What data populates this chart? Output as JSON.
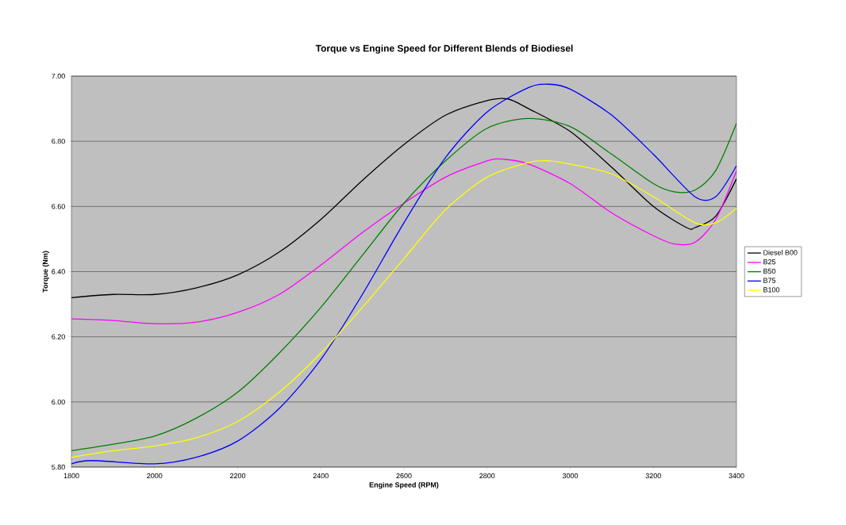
{
  "chart_data": {
    "type": "line",
    "title": "Torque vs Engine Speed for Different Blends of Biodiesel",
    "xlabel": "Engine Speed (RPM)",
    "ylabel": "Torque (Nm)",
    "xlim": [
      1800,
      3400
    ],
    "xticks": [
      1800,
      2000,
      2200,
      2400,
      2600,
      2800,
      3000,
      3200,
      3400
    ],
    "ylim": [
      5.8,
      7.0
    ],
    "yticks": [
      {
        "value": 5.8,
        "label": "5.80"
      },
      {
        "value": 6.0,
        "label": "6.00"
      },
      {
        "value": 6.2,
        "label": "6.20"
      },
      {
        "value": 6.4,
        "label": "6.40"
      },
      {
        "value": 6.6,
        "label": "6.60"
      },
      {
        "value": 6.8,
        "label": "6.80"
      },
      {
        "value": 7.0,
        "label": "7.00"
      }
    ],
    "grid": "y",
    "legend": "right",
    "marker": "none",
    "line_style": "solid",
    "series": [
      {
        "name": "Diesel B00",
        "color": "#000000",
        "x": [
          1800,
          1900,
          2000,
          2100,
          2200,
          2300,
          2400,
          2500,
          2600,
          2700,
          2800,
          2850,
          2900,
          3000,
          3100,
          3200,
          3280,
          3300,
          3350,
          3400
        ],
        "values": [
          6.32,
          6.33,
          6.33,
          6.35,
          6.39,
          6.46,
          6.56,
          6.68,
          6.79,
          6.88,
          6.925,
          6.93,
          6.9,
          6.83,
          6.72,
          6.6,
          6.535,
          6.535,
          6.57,
          6.685
        ]
      },
      {
        "name": "B25",
        "color": "#ff00ff",
        "x": [
          1800,
          1900,
          2000,
          2100,
          2200,
          2300,
          2400,
          2500,
          2600,
          2700,
          2800,
          2840,
          2900,
          3000,
          3100,
          3200,
          3250,
          3300,
          3350,
          3400
        ],
        "values": [
          6.255,
          6.25,
          6.24,
          6.245,
          6.275,
          6.33,
          6.42,
          6.52,
          6.61,
          6.69,
          6.74,
          6.745,
          6.73,
          6.67,
          6.58,
          6.51,
          6.485,
          6.49,
          6.56,
          6.71
        ]
      },
      {
        "name": "B50",
        "color": "#008000",
        "x": [
          1800,
          1900,
          2000,
          2100,
          2200,
          2300,
          2400,
          2500,
          2600,
          2700,
          2800,
          2900,
          3000,
          3100,
          3200,
          3250,
          3300,
          3350,
          3400
        ],
        "values": [
          5.85,
          5.87,
          5.895,
          5.95,
          6.03,
          6.15,
          6.29,
          6.45,
          6.61,
          6.74,
          6.84,
          6.87,
          6.845,
          6.76,
          6.67,
          6.645,
          6.65,
          6.71,
          6.855
        ]
      },
      {
        "name": "B75",
        "color": "#0000ff",
        "x": [
          1800,
          1850,
          2000,
          2100,
          2200,
          2300,
          2400,
          2500,
          2600,
          2700,
          2800,
          2900,
          2950,
          3000,
          3100,
          3200,
          3300,
          3350,
          3400
        ],
        "values": [
          5.81,
          5.82,
          5.81,
          5.83,
          5.88,
          5.98,
          6.13,
          6.33,
          6.55,
          6.75,
          6.89,
          6.965,
          6.975,
          6.96,
          6.88,
          6.76,
          6.63,
          6.63,
          6.725
        ]
      },
      {
        "name": "B100",
        "color": "#ffff00",
        "x": [
          1800,
          1900,
          2000,
          2100,
          2200,
          2300,
          2400,
          2500,
          2600,
          2700,
          2800,
          2900,
          2950,
          3000,
          3100,
          3200,
          3300,
          3350,
          3400
        ],
        "values": [
          5.83,
          5.85,
          5.865,
          5.89,
          5.94,
          6.03,
          6.15,
          6.29,
          6.44,
          6.59,
          6.69,
          6.735,
          6.74,
          6.73,
          6.7,
          6.63,
          6.55,
          6.55,
          6.595
        ]
      }
    ]
  }
}
